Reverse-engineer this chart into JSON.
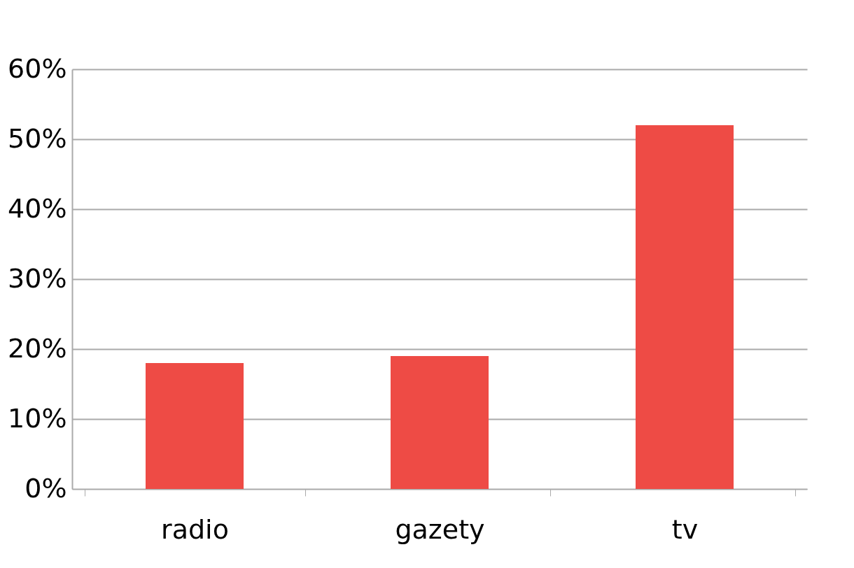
{
  "chart_data": {
    "type": "bar",
    "categories": [
      "radio",
      "gazety",
      "tv"
    ],
    "values": [
      18,
      19,
      52
    ],
    "color": "#ee4b45",
    "ylim": [
      0,
      60
    ],
    "yticks": [
      {
        "value": 0,
        "label": "0%"
      },
      {
        "value": 10,
        "label": "10%"
      },
      {
        "value": 20,
        "label": "20%"
      },
      {
        "value": 30,
        "label": "30%"
      },
      {
        "value": 40,
        "label": "40%"
      },
      {
        "value": 50,
        "label": "50%"
      },
      {
        "value": 60,
        "label": "60%"
      }
    ],
    "grid": "y"
  }
}
